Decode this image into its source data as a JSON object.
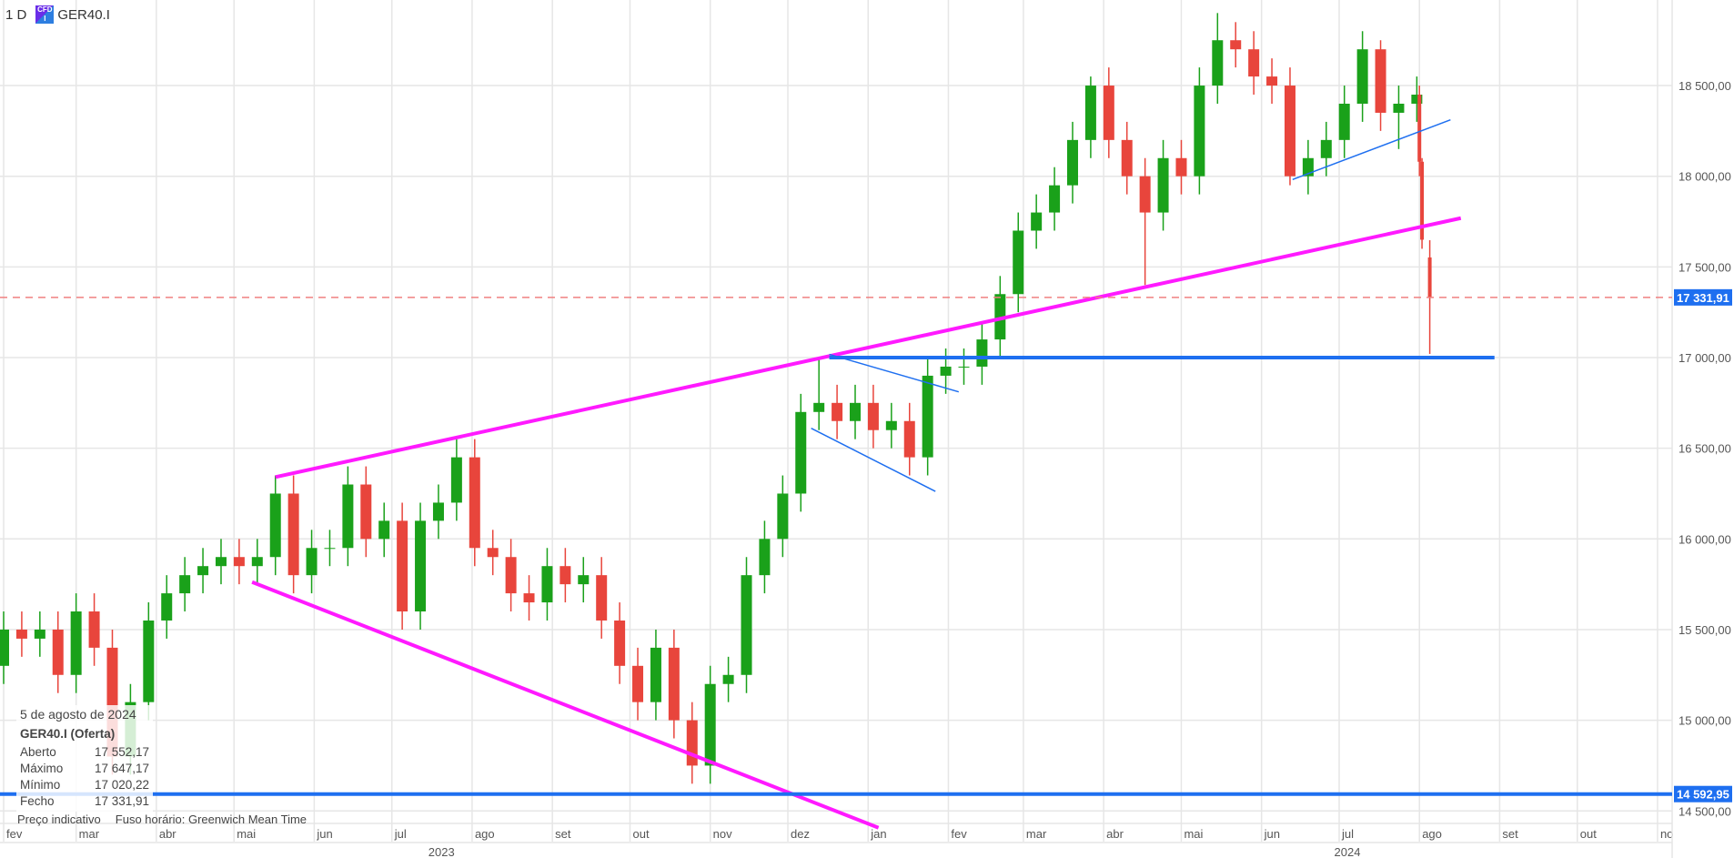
{
  "header": {
    "interval": "1 D",
    "symbol": "GER40.I",
    "badge_icon": "cfd-icon"
  },
  "info_box": {
    "date": "5 de agosto de 2024",
    "series": "GER40.I (Oferta)",
    "rows": [
      {
        "label": "Aberto",
        "value": "17 552,17"
      },
      {
        "label": "Máximo",
        "value": "17 647,17"
      },
      {
        "label": "Mínimo",
        "value": "17 020,22"
      },
      {
        "label": "Fecho",
        "value": "17 331,91"
      }
    ]
  },
  "footer": {
    "price_note": "Preço indicativo",
    "timezone": "Fuso horário: Greenwich Mean Time"
  },
  "colors": {
    "up": "#1aa11a",
    "down": "#e8453c",
    "magenta": "#ff1aff",
    "blue": "#1e6ff0",
    "grid": "#e6e6e6"
  },
  "chart_data": {
    "type": "candlestick",
    "ylim": [
      14450,
      18950
    ],
    "xlim": [
      "2023-02-01",
      "2024-11-01"
    ],
    "y_ticks": [
      14500,
      15000,
      15500,
      16000,
      16500,
      17000,
      17500,
      18000,
      18500
    ],
    "y_tick_labels": [
      "14 500,00",
      "15 000,00",
      "15 500,00",
      "16 000,00",
      "16 500,00",
      "17 000,00",
      "17 500,00",
      "18 000,00",
      "18 500,00"
    ],
    "x_ticks": [
      {
        "date": "2023-02-01",
        "label": "fev"
      },
      {
        "date": "2023-03-01",
        "label": "mar"
      },
      {
        "date": "2023-04-01",
        "label": "abr"
      },
      {
        "date": "2023-05-01",
        "label": "mai"
      },
      {
        "date": "2023-06-01",
        "label": "jun"
      },
      {
        "date": "2023-07-01",
        "label": "jul"
      },
      {
        "date": "2023-08-01",
        "label": "ago"
      },
      {
        "date": "2023-09-01",
        "label": "set"
      },
      {
        "date": "2023-10-01",
        "label": "out"
      },
      {
        "date": "2023-11-01",
        "label": "nov"
      },
      {
        "date": "2023-12-01",
        "label": "dez"
      },
      {
        "date": "2024-01-01",
        "label": "jan"
      },
      {
        "date": "2024-02-01",
        "label": "fev"
      },
      {
        "date": "2024-03-01",
        "label": "mar"
      },
      {
        "date": "2024-04-01",
        "label": "abr"
      },
      {
        "date": "2024-05-01",
        "label": "mai"
      },
      {
        "date": "2024-06-01",
        "label": "jun"
      },
      {
        "date": "2024-07-01",
        "label": "jul"
      },
      {
        "date": "2024-08-01",
        "label": "ago"
      },
      {
        "date": "2024-09-01",
        "label": "set"
      },
      {
        "date": "2024-10-01",
        "label": "out"
      },
      {
        "date": "2024-11-01",
        "label": "no"
      }
    ],
    "year_labels": [
      {
        "date": "2023-07-01",
        "label": "2023"
      },
      {
        "date": "2024-06-15",
        "label": "2024"
      }
    ],
    "grid": true,
    "candles": [
      [
        "2023-02-01",
        15300,
        15600,
        15200,
        15500
      ],
      [
        "2023-02-08",
        15500,
        15600,
        15350,
        15450
      ],
      [
        "2023-02-15",
        15450,
        15600,
        15350,
        15500
      ],
      [
        "2023-02-22",
        15500,
        15600,
        15150,
        15250
      ],
      [
        "2023-03-01",
        15250,
        15700,
        15150,
        15600
      ],
      [
        "2023-03-08",
        15600,
        15700,
        15300,
        15400
      ],
      [
        "2023-03-15",
        15400,
        15500,
        14700,
        14800
      ],
      [
        "2023-03-22",
        14800,
        15200,
        14700,
        15100
      ],
      [
        "2023-03-29",
        15100,
        15650,
        15000,
        15550
      ],
      [
        "2023-04-05",
        15550,
        15800,
        15450,
        15700
      ],
      [
        "2023-04-12",
        15700,
        15900,
        15600,
        15800
      ],
      [
        "2023-04-19",
        15800,
        15950,
        15700,
        15850
      ],
      [
        "2023-04-26",
        15850,
        16000,
        15750,
        15900
      ],
      [
        "2023-05-03",
        15900,
        16000,
        15750,
        15850
      ],
      [
        "2023-05-10",
        15850,
        16000,
        15750,
        15900
      ],
      [
        "2023-05-17",
        15900,
        16350,
        15800,
        16250
      ],
      [
        "2023-05-24",
        16250,
        16350,
        15700,
        15800
      ],
      [
        "2023-05-31",
        15800,
        16050,
        15700,
        15950
      ],
      [
        "2023-06-07",
        15950,
        16050,
        15850,
        15950
      ],
      [
        "2023-06-14",
        15950,
        16400,
        15850,
        16300
      ],
      [
        "2023-06-21",
        16300,
        16400,
        15900,
        16000
      ],
      [
        "2023-06-28",
        16000,
        16200,
        15900,
        16100
      ],
      [
        "2023-07-05",
        16100,
        16200,
        15500,
        15600
      ],
      [
        "2023-07-12",
        15600,
        16200,
        15500,
        16100
      ],
      [
        "2023-07-19",
        16100,
        16300,
        16000,
        16200
      ],
      [
        "2023-07-26",
        16200,
        16550,
        16100,
        16450
      ],
      [
        "2023-08-02",
        16450,
        16550,
        15850,
        15950
      ],
      [
        "2023-08-09",
        15950,
        16050,
        15800,
        15900
      ],
      [
        "2023-08-16",
        15900,
        16000,
        15600,
        15700
      ],
      [
        "2023-08-23",
        15700,
        15800,
        15550,
        15650
      ],
      [
        "2023-08-30",
        15650,
        15950,
        15550,
        15850
      ],
      [
        "2023-09-06",
        15850,
        15950,
        15650,
        15750
      ],
      [
        "2023-09-13",
        15750,
        15900,
        15650,
        15800
      ],
      [
        "2023-09-20",
        15800,
        15900,
        15450,
        15550
      ],
      [
        "2023-09-27",
        15550,
        15650,
        15200,
        15300
      ],
      [
        "2023-10-04",
        15300,
        15400,
        15000,
        15100
      ],
      [
        "2023-10-11",
        15100,
        15500,
        15000,
        15400
      ],
      [
        "2023-10-18",
        15400,
        15500,
        14900,
        15000
      ],
      [
        "2023-10-25",
        15000,
        15100,
        14650,
        14750
      ],
      [
        "2023-11-01",
        14750,
        15300,
        14650,
        15200
      ],
      [
        "2023-11-08",
        15200,
        15350,
        15100,
        15250
      ],
      [
        "2023-11-15",
        15250,
        15900,
        15150,
        15800
      ],
      [
        "2023-11-22",
        15800,
        16100,
        15700,
        16000
      ],
      [
        "2023-11-29",
        16000,
        16350,
        15900,
        16250
      ],
      [
        "2023-12-06",
        16250,
        16800,
        16150,
        16700
      ],
      [
        "2023-12-13",
        16700,
        17000,
        16600,
        16750
      ],
      [
        "2023-12-20",
        16750,
        16850,
        16550,
        16650
      ],
      [
        "2023-12-27",
        16650,
        16850,
        16550,
        16750
      ],
      [
        "2024-01-03",
        16750,
        16850,
        16500,
        16600
      ],
      [
        "2024-01-10",
        16600,
        16750,
        16500,
        16650
      ],
      [
        "2024-01-17",
        16650,
        16750,
        16350,
        16450
      ],
      [
        "2024-01-24",
        16450,
        17000,
        16350,
        16900
      ],
      [
        "2024-01-31",
        16900,
        17050,
        16800,
        16950
      ],
      [
        "2024-02-07",
        16950,
        17050,
        16850,
        16950
      ],
      [
        "2024-02-14",
        16950,
        17200,
        16850,
        17100
      ],
      [
        "2024-02-21",
        17100,
        17450,
        17000,
        17350
      ],
      [
        "2024-02-28",
        17350,
        17800,
        17250,
        17700
      ],
      [
        "2024-03-06",
        17700,
        17900,
        17600,
        17800
      ],
      [
        "2024-03-13",
        17800,
        18050,
        17700,
        17950
      ],
      [
        "2024-03-20",
        17950,
        18300,
        17850,
        18200
      ],
      [
        "2024-03-27",
        18200,
        18550,
        18100,
        18500
      ],
      [
        "2024-04-03",
        18500,
        18600,
        18100,
        18200
      ],
      [
        "2024-04-10",
        18200,
        18300,
        17900,
        18000
      ],
      [
        "2024-04-17",
        18000,
        18100,
        17400,
        17800
      ],
      [
        "2024-04-24",
        17800,
        18200,
        17700,
        18100
      ],
      [
        "2024-05-01",
        18100,
        18200,
        17900,
        18000
      ],
      [
        "2024-05-08",
        18000,
        18600,
        17900,
        18500
      ],
      [
        "2024-05-15",
        18500,
        18900,
        18400,
        18750
      ],
      [
        "2024-05-22",
        18750,
        18850,
        18600,
        18700
      ],
      [
        "2024-05-29",
        18700,
        18800,
        18450,
        18550
      ],
      [
        "2024-06-05",
        18550,
        18650,
        18400,
        18500
      ],
      [
        "2024-06-12",
        18500,
        18600,
        17950,
        18000
      ],
      [
        "2024-06-19",
        18000,
        18200,
        17900,
        18100
      ],
      [
        "2024-06-26",
        18100,
        18300,
        18000,
        18200
      ],
      [
        "2024-07-03",
        18200,
        18500,
        18100,
        18400
      ],
      [
        "2024-07-10",
        18400,
        18800,
        18300,
        18700
      ],
      [
        "2024-07-17",
        18700,
        18750,
        18250,
        18350
      ],
      [
        "2024-07-24",
        18350,
        18500,
        18150,
        18400
      ],
      [
        "2024-07-31",
        18400,
        18550,
        18300,
        18450
      ],
      [
        "2024-08-01",
        18450,
        18500,
        18000,
        18080
      ],
      [
        "2024-08-02",
        18080,
        18100,
        17600,
        17650
      ],
      [
        "2024-08-05",
        17552.17,
        17647.17,
        17020.22,
        17331.91
      ]
    ],
    "price_lines": [
      {
        "price": 17331.91,
        "label": "17 331,91",
        "style": "dashed-red"
      },
      {
        "price": 14592.95,
        "label": "14 592,95",
        "style": "solid-blue"
      }
    ],
    "trendlines": [
      {
        "color": "magenta",
        "width": "thick",
        "from": [
          "2023-05-17",
          16341
        ],
        "to": [
          "2024-08-17",
          17769
        ]
      },
      {
        "color": "magenta",
        "width": "thick",
        "from": [
          "2023-05-08",
          15762
        ],
        "to": [
          "2024-01-05",
          14407
        ]
      },
      {
        "color": "blue",
        "width": "thick",
        "from": [
          "2023-12-17",
          17000
        ],
        "to": [
          "2024-08-30",
          17000
        ]
      },
      {
        "color": "blue",
        "width": "thin",
        "from": [
          "2023-12-17",
          17018
        ],
        "to": [
          "2024-02-05",
          16811
        ]
      },
      {
        "color": "blue",
        "width": "thin",
        "from": [
          "2023-12-10",
          16610
        ],
        "to": [
          "2024-01-27",
          16262
        ]
      },
      {
        "color": "blue",
        "width": "thin",
        "from": [
          "2024-06-13",
          17982
        ],
        "to": [
          "2024-08-13",
          18311
        ]
      }
    ]
  }
}
